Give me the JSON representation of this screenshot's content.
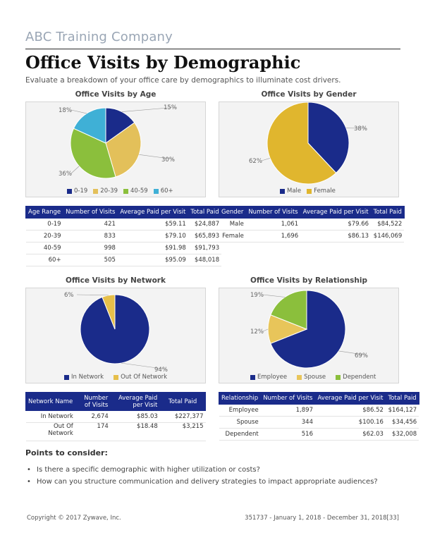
{
  "header": {
    "company": "ABC Training Company",
    "title": "Office Visits by Demographic",
    "subtitle": "Evaluate a breakdown of your office care by demographics to illuminate cost drivers."
  },
  "chart_data": [
    {
      "id": "age",
      "type": "pie",
      "title": "Office Visits by Age",
      "categories": [
        "0-19",
        "20-39",
        "40-59",
        "60+"
      ],
      "values": [
        15,
        30,
        36,
        18
      ],
      "labels": [
        "15%",
        "30%",
        "36%",
        "18%"
      ],
      "colors": [
        "#1a2b8a",
        "#e3c05a",
        "#8bbf3c",
        "#3fb0d6"
      ]
    },
    {
      "id": "gender",
      "type": "pie",
      "title": "Office Visits by Gender",
      "categories": [
        "Male",
        "Female"
      ],
      "values": [
        38,
        62
      ],
      "labels": [
        "38%",
        "62%"
      ],
      "colors": [
        "#1a2b8a",
        "#e0b62e"
      ]
    },
    {
      "id": "network",
      "type": "pie",
      "title": "Office Visits by Network",
      "categories": [
        "In Network",
        "Out Of Network"
      ],
      "values": [
        94,
        6
      ],
      "labels": [
        "94%",
        "6%"
      ],
      "colors": [
        "#1a2b8a",
        "#e6bf4a"
      ]
    },
    {
      "id": "relationship",
      "type": "pie",
      "title": "Office Visits by Relationship",
      "categories": [
        "Employee",
        "Spouse",
        "Dependent"
      ],
      "values": [
        69,
        12,
        19
      ],
      "labels": [
        "69%",
        "12%",
        "19%"
      ],
      "colors": [
        "#1a2b8a",
        "#e8c55a",
        "#8bbf3c"
      ]
    }
  ],
  "tables": {
    "age": {
      "headers": [
        "Age Range",
        "Number of Visits",
        "Average Paid per Visit",
        "Total Paid"
      ],
      "rows": [
        [
          "0-19",
          "421",
          "$59.11",
          "$24,887"
        ],
        [
          "20-39",
          "833",
          "$79.10",
          "$65,893"
        ],
        [
          "40-59",
          "998",
          "$91.98",
          "$91,793"
        ],
        [
          "60+",
          "505",
          "$95.09",
          "$48,018"
        ]
      ]
    },
    "gender": {
      "headers": [
        "Gender",
        "Number of Visits",
        "Average Paid per Visit",
        "Total Paid"
      ],
      "rows": [
        [
          "Male",
          "1,061",
          "$79.66",
          "$84,522"
        ],
        [
          "Female",
          "1,696",
          "$86.13",
          "$146,069"
        ]
      ]
    },
    "network": {
      "headers": [
        "Network Name",
        "Number of Visits",
        "Average Paid per Visit",
        "Total Paid"
      ],
      "rows": [
        [
          "In Network",
          "2,674",
          "$85.03",
          "$227,377"
        ],
        [
          "Out Of Network",
          "174",
          "$18.48",
          "$3,215"
        ]
      ]
    },
    "relationship": {
      "headers": [
        "Relationship",
        "Number of Visits",
        "Average Paid per Visit",
        "Total Paid"
      ],
      "rows": [
        [
          "Employee",
          "1,897",
          "$86.52",
          "$164,127"
        ],
        [
          "Spouse",
          "344",
          "$100.16",
          "$34,456"
        ],
        [
          "Dependent",
          "516",
          "$62.03",
          "$32,008"
        ]
      ]
    }
  },
  "points": {
    "heading": "Points to consider:",
    "items": [
      "Is there a specific demographic with higher utilization or costs?",
      "How can you structure communication and delivery strategies to impact appropriate audiences?"
    ]
  },
  "footer": {
    "copyright": "Copyright © 2017 Zywave, Inc.",
    "report_info": "351737 - January 1, 2018 - December 31, 2018[33]"
  }
}
